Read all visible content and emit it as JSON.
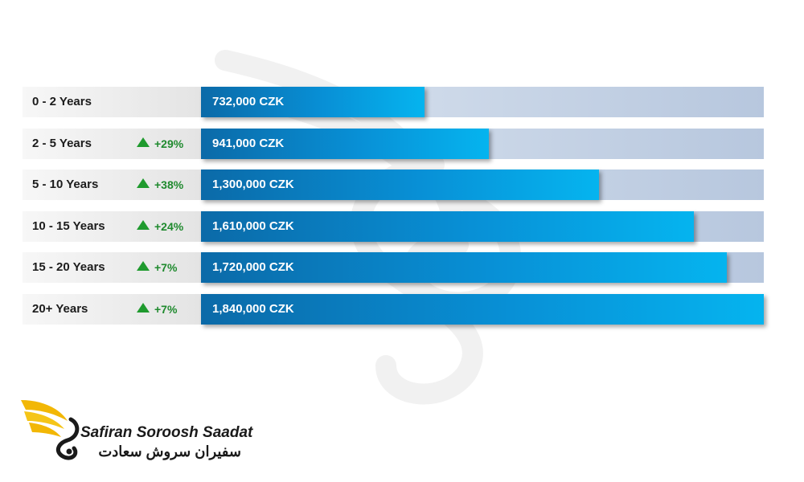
{
  "chart_data": {
    "type": "bar",
    "orientation": "horizontal",
    "categories": [
      "0 - 2 Years",
      "2 - 5 Years",
      "5 - 10 Years",
      "10 - 15 Years",
      "15 - 20 Years",
      "20+ Years"
    ],
    "values": [
      732000,
      941000,
      1300000,
      1610000,
      1720000,
      1840000
    ],
    "value_labels": [
      "732,000 CZK",
      "941,000 CZK",
      "1,300,000 CZK",
      "1,610,000 CZK",
      "1,720,000 CZK",
      "1,840,000 CZK"
    ],
    "changes": [
      "",
      "+29%",
      "+38%",
      "+24%",
      "+7%",
      "+7%"
    ],
    "xlim": [
      0,
      1840000
    ],
    "grid": false,
    "colors": {
      "bar_start": "#0b6aa8",
      "bar_end": "#05b4ef",
      "track_start": "#dde6f1",
      "track_end": "#b7c7de",
      "increase": "#1f8a2e"
    }
  },
  "logo": {
    "name_en": "Safiran Soroosh Saadat",
    "name_fa": "سفیران سروش سعادت",
    "icon": "wing-s-logo-icon"
  },
  "watermark": {
    "icon": "wing-s-watermark-icon"
  }
}
